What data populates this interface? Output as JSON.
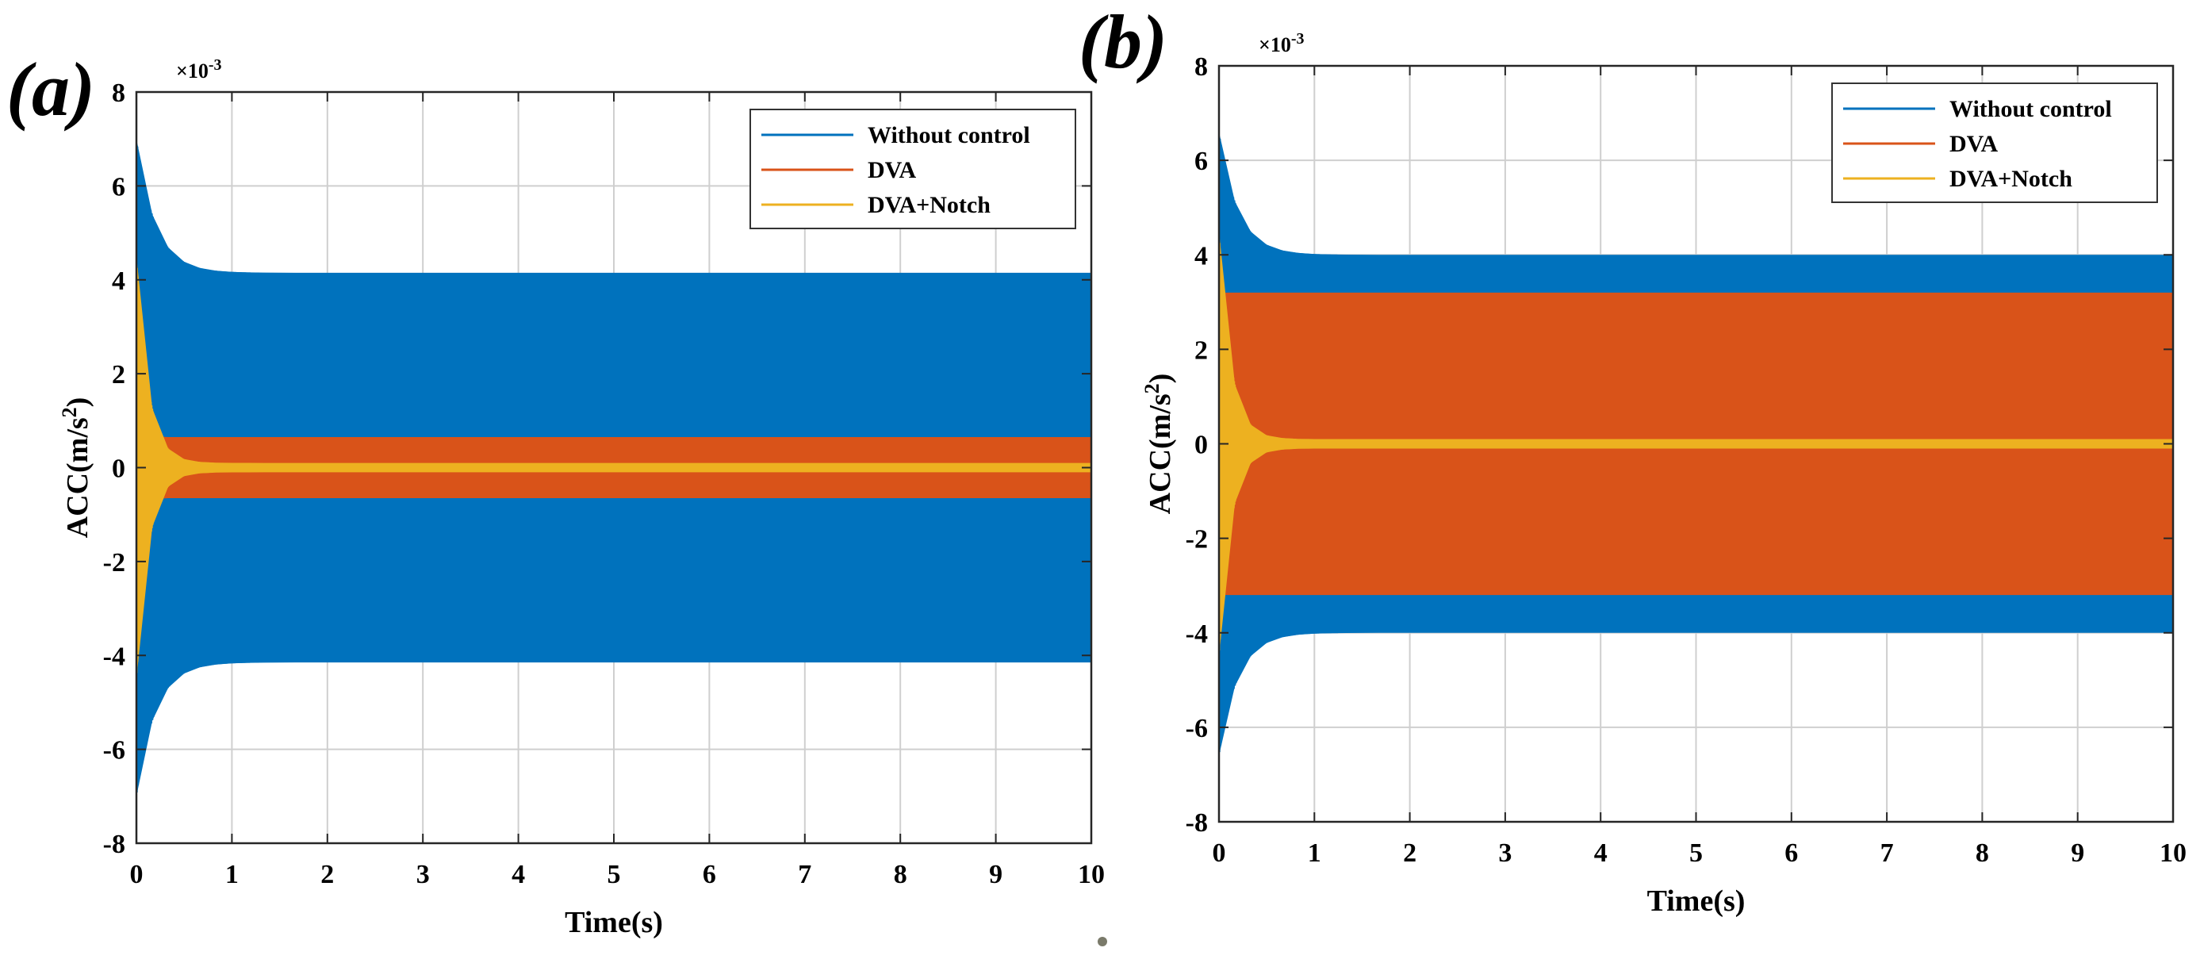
{
  "chart_data": [
    {
      "type": "line",
      "panel_label": "(a)",
      "title": "",
      "xlabel": "Time(s)",
      "ylabel_base": "ACC(m/s",
      "ylabel_sup": "2",
      "ylabel_close": ")",
      "exponent_base": "×10",
      "exponent_sup": "-3",
      "xlim": [
        0,
        10
      ],
      "ylim": [
        -8,
        8
      ],
      "xticks": [
        "0",
        "1",
        "2",
        "3",
        "4",
        "5",
        "6",
        "7",
        "8",
        "9",
        "10"
      ],
      "yticks": [
        "8",
        "6",
        "4",
        "2",
        "0",
        "-2",
        "-4",
        "-6",
        "-8"
      ],
      "grid": true,
      "legend_position": "top-right",
      "series": [
        {
          "name": "Without control",
          "color": "#0072BD",
          "peak": 7.0,
          "steady": 4.15,
          "settle_time": 0.8
        },
        {
          "name": "DVA",
          "color": "#D95319",
          "peak": 1.2,
          "steady": 0.65,
          "settle_time": 0.2
        },
        {
          "name": "DVA+Notch",
          "color": "#EDB120",
          "peak": 4.5,
          "steady": 0.1,
          "settle_time": 0.5
        }
      ]
    },
    {
      "type": "line",
      "panel_label": "(b)",
      "title": "",
      "xlabel": "Time(s)",
      "ylabel_base": "ACC(m/s",
      "ylabel_sup": "2",
      "ylabel_close": ")",
      "exponent_base": "×10",
      "exponent_sup": "-3",
      "xlim": [
        0,
        10
      ],
      "ylim": [
        -8,
        8
      ],
      "xticks": [
        "0",
        "1",
        "2",
        "3",
        "4",
        "5",
        "6",
        "7",
        "8",
        "9",
        "10"
      ],
      "yticks": [
        "8",
        "6",
        "4",
        "2",
        "0",
        "-2",
        "-4",
        "-6",
        "-8"
      ],
      "grid": true,
      "legend_position": "top-right",
      "series": [
        {
          "name": "Without control",
          "color": "#0072BD",
          "peak": 6.6,
          "steady": 4.0,
          "settle_time": 0.8
        },
        {
          "name": "DVA",
          "color": "#D95319",
          "peak": 3.2,
          "steady": 3.2,
          "settle_time": 0.0
        },
        {
          "name": "DVA+Notch",
          "color": "#EDB120",
          "peak": 4.5,
          "steady": 0.1,
          "settle_time": 0.5
        }
      ]
    }
  ]
}
